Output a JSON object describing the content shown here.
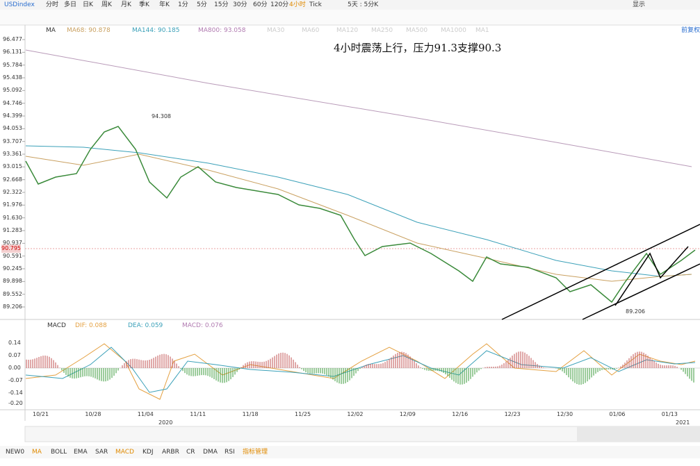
{
  "toolbar": {
    "symbol": "USDindex",
    "periods": [
      "分时",
      "多日",
      "日K",
      "周K",
      "月K",
      "季K",
      "年K",
      "1分",
      "5分",
      "15分",
      "30分",
      "60分",
      "120分",
      "4小时",
      "Tick",
      "5天 : 5分K"
    ],
    "display": "显示",
    "adjust": "前复权"
  },
  "main_panel": {
    "indicator": "MA",
    "ma_labels": [
      "MA68: 90.878",
      "MA144: 90.185",
      "MA800: 93.058"
    ],
    "faded_labels": [
      "MA30",
      "MA60",
      "MA120",
      "MA250",
      "MA500",
      "MA1000",
      "MA1"
    ],
    "price_ticks": [
      "96.477",
      "96.131",
      "95.784",
      "95.438",
      "95.092",
      "94.746",
      "94.399",
      "94.053",
      "93.707",
      "93.361",
      "93.015",
      "92.668",
      "92.322",
      "91.976",
      "91.630",
      "91.283",
      "90.937",
      "90.591",
      "90.245",
      "89.898",
      "89.552",
      "89.206"
    ],
    "current_price": "90.795",
    "annotation": "4小时震荡上行，压力91.3支撑90.3",
    "high_label": "94.308",
    "low_label": "89.206"
  },
  "macd_panel": {
    "indicator": "MACD",
    "labels": [
      "DIF: 0.088",
      "DEA: 0.059",
      "MACD: 0.076"
    ],
    "ticks": [
      "0.14",
      "0.07",
      "0.00",
      "-0.07",
      "-0.14",
      "-0.20"
    ]
  },
  "time_axis": {
    "dates": [
      "10/21",
      "10/28",
      "11/04",
      "11/11",
      "11/18",
      "11/25",
      "12/02",
      "12/09",
      "12/16",
      "12/23",
      "12/30",
      "01/06",
      "01/13"
    ],
    "years": [
      "2020",
      "2021"
    ]
  },
  "bottom_tabs": [
    "NEW0",
    "MA",
    "BOLL",
    "EMA",
    "SAR",
    "MACD",
    "KDJ",
    "ARBR",
    "CR",
    "DMA",
    "RSI",
    "指标管理"
  ]
}
